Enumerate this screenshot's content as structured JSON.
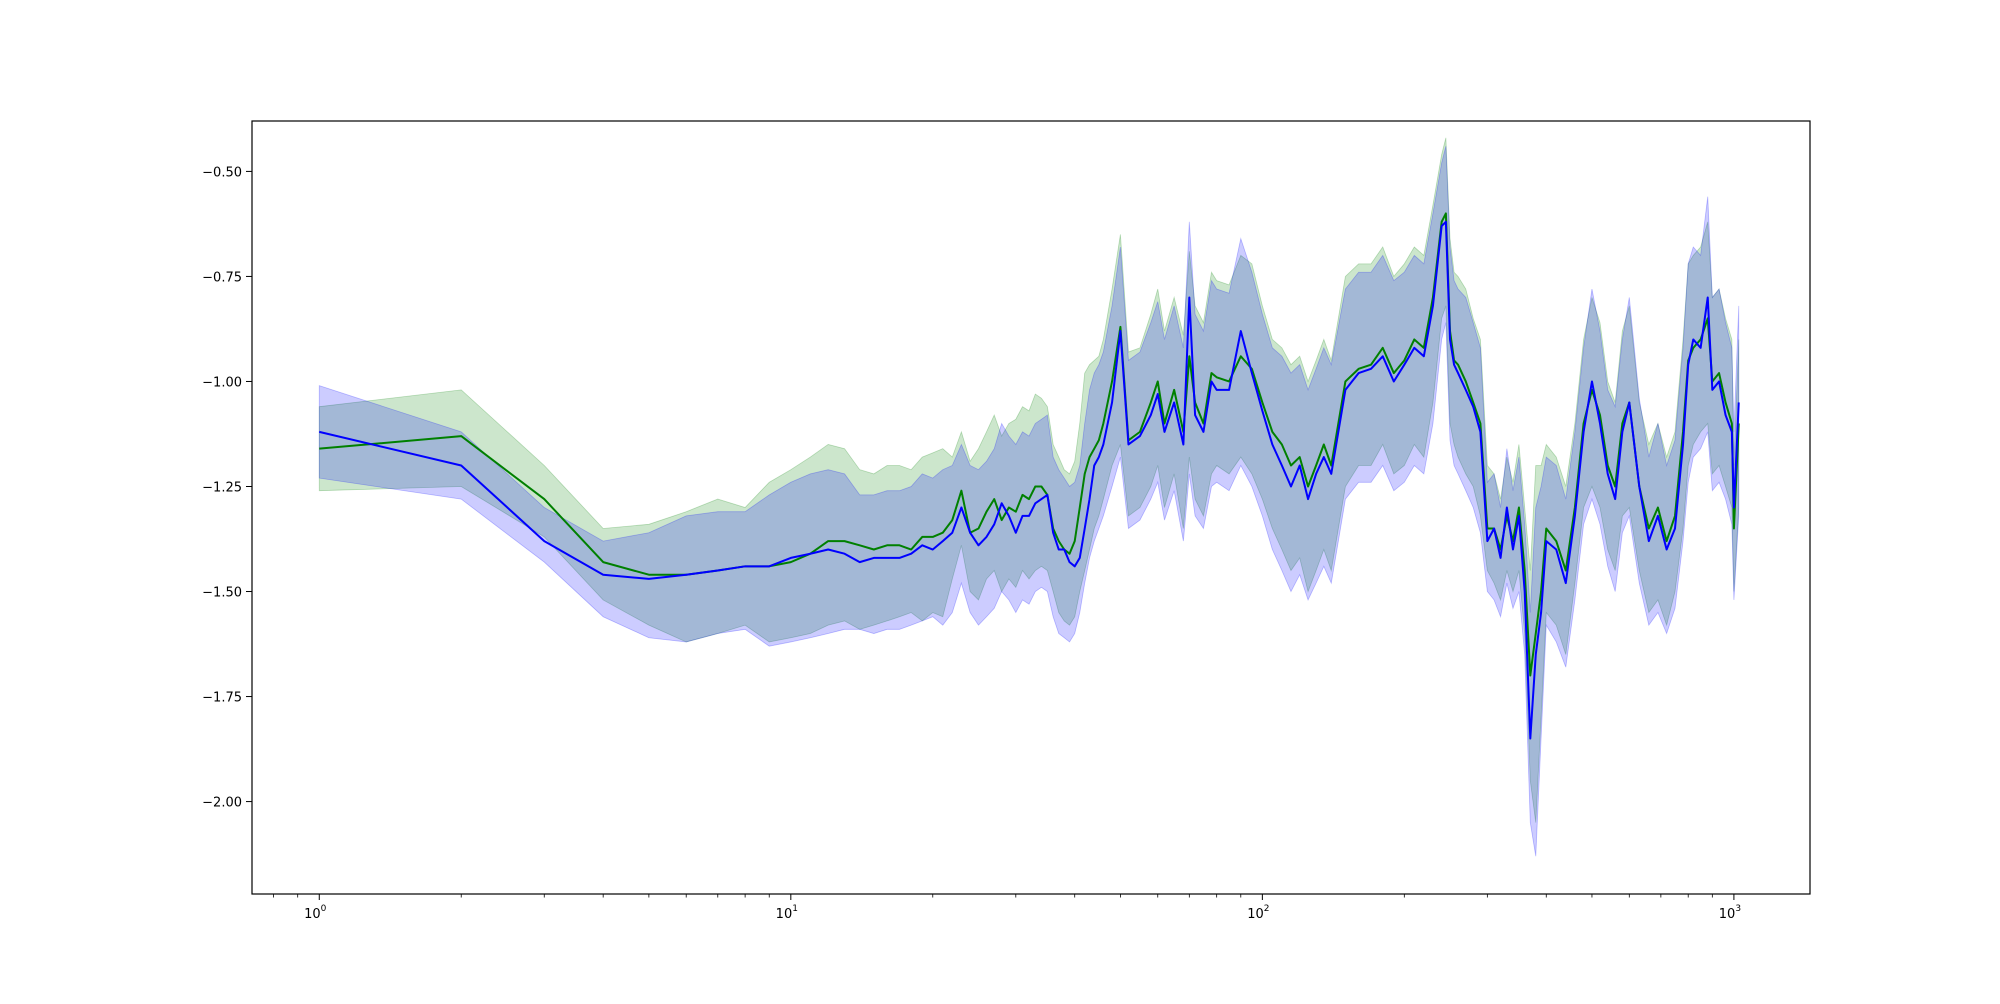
{
  "chart_data": {
    "type": "line",
    "title": "",
    "xlabel": "",
    "ylabel": "",
    "xscale": "log",
    "xlim": [
      0.72,
      1450
    ],
    "ylim": [
      -2.22,
      -0.38
    ],
    "grid": false,
    "legend": "none",
    "x_ticks": [
      {
        "value": 1,
        "base": "10",
        "exp": "0"
      },
      {
        "value": 10,
        "base": "10",
        "exp": "1"
      },
      {
        "value": 100,
        "base": "10",
        "exp": "2"
      },
      {
        "value": 1000,
        "base": "10",
        "exp": "3"
      }
    ],
    "y_ticks": [
      {
        "value": -0.5,
        "label": "−0.50"
      },
      {
        "value": -0.75,
        "label": "−0.75"
      },
      {
        "value": -1.0,
        "label": "−1.00"
      },
      {
        "value": -1.25,
        "label": "−1.25"
      },
      {
        "value": -1.5,
        "label": "−1.50"
      },
      {
        "value": -1.75,
        "label": "−1.75"
      },
      {
        "value": -2.0,
        "label": "−2.00"
      }
    ],
    "series": [
      {
        "color": "#008000",
        "fill_color": "#008000",
        "fill_opacity": 0.2,
        "x": [
          1,
          2,
          3,
          4,
          5,
          6,
          7,
          8,
          9,
          10,
          11,
          12,
          13,
          14,
          15,
          16,
          17,
          18,
          19,
          20,
          21,
          22,
          23,
          24,
          25,
          26,
          27,
          28,
          29,
          30,
          31,
          32,
          33,
          34,
          35,
          36,
          37,
          38,
          39,
          40,
          41,
          42,
          43,
          44,
          45,
          46,
          48,
          50,
          52,
          55,
          58,
          60,
          62,
          65,
          68,
          70,
          72,
          75,
          78,
          80,
          85,
          90,
          95,
          100,
          105,
          110,
          115,
          120,
          125,
          130,
          135,
          140,
          150,
          160,
          170,
          180,
          190,
          200,
          210,
          220,
          230,
          240,
          245,
          250,
          255,
          260,
          270,
          280,
          290,
          300,
          310,
          320,
          330,
          340,
          350,
          360,
          370,
          380,
          390,
          400,
          420,
          440,
          460,
          480,
          500,
          520,
          540,
          560,
          580,
          600,
          630,
          660,
          690,
          720,
          750,
          780,
          800,
          820,
          850,
          880,
          900,
          930,
          960,
          990,
          1000,
          1024
        ],
        "y": [
          -1.16,
          -1.13,
          -1.28,
          -1.43,
          -1.46,
          -1.46,
          -1.45,
          -1.44,
          -1.44,
          -1.43,
          -1.41,
          -1.38,
          -1.38,
          -1.39,
          -1.4,
          -1.39,
          -1.39,
          -1.4,
          -1.37,
          -1.37,
          -1.36,
          -1.33,
          -1.26,
          -1.36,
          -1.35,
          -1.31,
          -1.28,
          -1.33,
          -1.3,
          -1.31,
          -1.27,
          -1.28,
          -1.25,
          -1.25,
          -1.27,
          -1.35,
          -1.38,
          -1.4,
          -1.41,
          -1.38,
          -1.3,
          -1.22,
          -1.18,
          -1.16,
          -1.14,
          -1.1,
          -1.0,
          -0.87,
          -1.14,
          -1.12,
          -1.05,
          -1.0,
          -1.1,
          -1.02,
          -1.12,
          -0.94,
          -1.05,
          -1.1,
          -0.98,
          -0.99,
          -1.0,
          -0.94,
          -0.97,
          -1.05,
          -1.12,
          -1.15,
          -1.2,
          -1.18,
          -1.25,
          -1.2,
          -1.15,
          -1.2,
          -1.0,
          -0.97,
          -0.96,
          -0.92,
          -0.98,
          -0.95,
          -0.9,
          -0.92,
          -0.8,
          -0.62,
          -0.6,
          -0.88,
          -0.95,
          -0.96,
          -1.0,
          -1.05,
          -1.1,
          -1.35,
          -1.35,
          -1.4,
          -1.32,
          -1.38,
          -1.3,
          -1.45,
          -1.7,
          -1.6,
          -1.5,
          -1.35,
          -1.38,
          -1.45,
          -1.3,
          -1.1,
          -1.02,
          -1.08,
          -1.2,
          -1.25,
          -1.1,
          -1.05,
          -1.25,
          -1.35,
          -1.3,
          -1.38,
          -1.32,
          -1.12,
          -0.95,
          -0.92,
          -0.9,
          -0.85,
          -1.0,
          -0.98,
          -1.05,
          -1.1,
          -1.35,
          -1.1
        ],
        "lower": [
          -1.26,
          -1.25,
          -1.37,
          -1.52,
          -1.58,
          -1.62,
          -1.6,
          -1.58,
          -1.62,
          -1.61,
          -1.6,
          -1.58,
          -1.57,
          -1.59,
          -1.58,
          -1.57,
          -1.56,
          -1.55,
          -1.57,
          -1.55,
          -1.56,
          -1.47,
          -1.39,
          -1.5,
          -1.52,
          -1.47,
          -1.45,
          -1.5,
          -1.47,
          -1.49,
          -1.45,
          -1.47,
          -1.45,
          -1.44,
          -1.45,
          -1.5,
          -1.55,
          -1.57,
          -1.58,
          -1.56,
          -1.5,
          -1.45,
          -1.4,
          -1.35,
          -1.32,
          -1.28,
          -1.2,
          -1.15,
          -1.32,
          -1.3,
          -1.25,
          -1.2,
          -1.3,
          -1.22,
          -1.35,
          -1.18,
          -1.28,
          -1.32,
          -1.22,
          -1.2,
          -1.22,
          -1.18,
          -1.22,
          -1.28,
          -1.35,
          -1.4,
          -1.45,
          -1.42,
          -1.5,
          -1.45,
          -1.4,
          -1.45,
          -1.25,
          -1.2,
          -1.2,
          -1.15,
          -1.22,
          -1.2,
          -1.15,
          -1.18,
          -1.05,
          -0.85,
          -0.82,
          -1.1,
          -1.15,
          -1.18,
          -1.22,
          -1.25,
          -1.32,
          -1.45,
          -1.48,
          -1.52,
          -1.45,
          -1.5,
          -1.45,
          -1.6,
          -1.95,
          -2.05,
          -1.8,
          -1.55,
          -1.58,
          -1.65,
          -1.48,
          -1.3,
          -1.25,
          -1.3,
          -1.4,
          -1.45,
          -1.32,
          -1.3,
          -1.45,
          -1.55,
          -1.52,
          -1.58,
          -1.5,
          -1.35,
          -1.2,
          -1.15,
          -1.12,
          -1.1,
          -1.22,
          -1.2,
          -1.25,
          -1.3,
          -1.5,
          -1.3
        ],
        "upper": [
          -1.06,
          -1.02,
          -1.2,
          -1.35,
          -1.34,
          -1.31,
          -1.28,
          -1.3,
          -1.24,
          -1.21,
          -1.18,
          -1.15,
          -1.16,
          -1.21,
          -1.22,
          -1.2,
          -1.2,
          -1.21,
          -1.18,
          -1.17,
          -1.16,
          -1.18,
          -1.12,
          -1.19,
          -1.16,
          -1.12,
          -1.08,
          -1.13,
          -1.1,
          -1.09,
          -1.06,
          -1.07,
          -1.03,
          -1.04,
          -1.06,
          -1.15,
          -1.18,
          -1.21,
          -1.22,
          -1.19,
          -1.1,
          -0.98,
          -0.96,
          -0.95,
          -0.94,
          -0.9,
          -0.78,
          -0.65,
          -0.93,
          -0.92,
          -0.84,
          -0.78,
          -0.88,
          -0.8,
          -0.89,
          -0.69,
          -0.82,
          -0.86,
          -0.74,
          -0.76,
          -0.77,
          -0.7,
          -0.72,
          -0.82,
          -0.9,
          -0.92,
          -0.96,
          -0.94,
          -1.0,
          -0.95,
          -0.9,
          -0.95,
          -0.75,
          -0.72,
          -0.72,
          -0.68,
          -0.75,
          -0.72,
          -0.68,
          -0.7,
          -0.58,
          -0.46,
          -0.42,
          -0.66,
          -0.74,
          -0.75,
          -0.78,
          -0.85,
          -0.9,
          -1.2,
          -1.22,
          -1.28,
          -1.18,
          -1.24,
          -1.15,
          -1.3,
          -1.45,
          -1.2,
          -1.2,
          -1.15,
          -1.18,
          -1.25,
          -1.1,
          -0.9,
          -0.8,
          -0.86,
          -1.0,
          -1.05,
          -0.88,
          -0.82,
          -1.05,
          -1.15,
          -1.1,
          -1.18,
          -1.12,
          -0.9,
          -0.72,
          -0.7,
          -0.68,
          -0.62,
          -0.8,
          -0.78,
          -0.85,
          -0.9,
          -1.2,
          -0.9
        ]
      },
      {
        "color": "#0000ff",
        "fill_color": "#0000ff",
        "fill_opacity": 0.2,
        "x": [
          1,
          2,
          3,
          4,
          5,
          6,
          7,
          8,
          9,
          10,
          11,
          12,
          13,
          14,
          15,
          16,
          17,
          18,
          19,
          20,
          21,
          22,
          23,
          24,
          25,
          26,
          27,
          28,
          29,
          30,
          31,
          32,
          33,
          34,
          35,
          36,
          37,
          38,
          39,
          40,
          41,
          42,
          43,
          44,
          45,
          46,
          48,
          50,
          52,
          55,
          58,
          60,
          62,
          65,
          68,
          70,
          72,
          75,
          78,
          80,
          85,
          90,
          95,
          100,
          105,
          110,
          115,
          120,
          125,
          130,
          135,
          140,
          150,
          160,
          170,
          180,
          190,
          200,
          210,
          220,
          230,
          240,
          245,
          250,
          255,
          260,
          270,
          280,
          290,
          300,
          310,
          320,
          330,
          340,
          350,
          360,
          370,
          380,
          390,
          400,
          420,
          440,
          460,
          480,
          500,
          520,
          540,
          560,
          580,
          600,
          630,
          660,
          690,
          720,
          750,
          780,
          800,
          820,
          850,
          880,
          900,
          930,
          960,
          990,
          1000,
          1024
        ],
        "y": [
          -1.12,
          -1.2,
          -1.38,
          -1.46,
          -1.47,
          -1.46,
          -1.45,
          -1.44,
          -1.44,
          -1.42,
          -1.41,
          -1.4,
          -1.41,
          -1.43,
          -1.42,
          -1.42,
          -1.42,
          -1.41,
          -1.39,
          -1.4,
          -1.38,
          -1.36,
          -1.3,
          -1.36,
          -1.39,
          -1.37,
          -1.34,
          -1.29,
          -1.32,
          -1.36,
          -1.32,
          -1.32,
          -1.29,
          -1.28,
          -1.27,
          -1.36,
          -1.4,
          -1.4,
          -1.43,
          -1.44,
          -1.42,
          -1.35,
          -1.28,
          -1.2,
          -1.18,
          -1.15,
          -1.05,
          -0.88,
          -1.15,
          -1.13,
          -1.08,
          -1.03,
          -1.12,
          -1.05,
          -1.15,
          -0.8,
          -1.08,
          -1.12,
          -1.0,
          -1.02,
          -1.02,
          -0.88,
          -0.98,
          -1.07,
          -1.15,
          -1.2,
          -1.25,
          -1.2,
          -1.28,
          -1.22,
          -1.18,
          -1.22,
          -1.02,
          -0.98,
          -0.97,
          -0.94,
          -1.0,
          -0.96,
          -0.92,
          -0.94,
          -0.82,
          -0.63,
          -0.62,
          -0.9,
          -0.96,
          -0.98,
          -1.02,
          -1.06,
          -1.12,
          -1.38,
          -1.35,
          -1.42,
          -1.3,
          -1.4,
          -1.32,
          -1.5,
          -1.85,
          -1.65,
          -1.55,
          -1.38,
          -1.4,
          -1.48,
          -1.32,
          -1.12,
          -1.0,
          -1.1,
          -1.22,
          -1.28,
          -1.12,
          -1.05,
          -1.25,
          -1.38,
          -1.32,
          -1.4,
          -1.35,
          -1.15,
          -0.96,
          -0.9,
          -0.92,
          -0.8,
          -1.02,
          -1.0,
          -1.08,
          -1.12,
          -1.3,
          -1.05
        ],
        "lower": [
          -1.23,
          -1.28,
          -1.43,
          -1.56,
          -1.61,
          -1.62,
          -1.6,
          -1.59,
          -1.63,
          -1.62,
          -1.61,
          -1.6,
          -1.59,
          -1.59,
          -1.6,
          -1.59,
          -1.59,
          -1.58,
          -1.57,
          -1.56,
          -1.58,
          -1.55,
          -1.48,
          -1.55,
          -1.58,
          -1.56,
          -1.54,
          -1.5,
          -1.52,
          -1.55,
          -1.52,
          -1.53,
          -1.5,
          -1.49,
          -1.5,
          -1.56,
          -1.6,
          -1.61,
          -1.62,
          -1.6,
          -1.55,
          -1.48,
          -1.42,
          -1.38,
          -1.35,
          -1.32,
          -1.25,
          -1.18,
          -1.35,
          -1.33,
          -1.28,
          -1.24,
          -1.33,
          -1.26,
          -1.38,
          -1.22,
          -1.32,
          -1.35,
          -1.25,
          -1.24,
          -1.26,
          -1.2,
          -1.25,
          -1.32,
          -1.4,
          -1.45,
          -1.5,
          -1.46,
          -1.52,
          -1.48,
          -1.44,
          -1.48,
          -1.28,
          -1.24,
          -1.24,
          -1.2,
          -1.26,
          -1.24,
          -1.2,
          -1.22,
          -1.1,
          -0.9,
          -0.86,
          -1.14,
          -1.2,
          -1.22,
          -1.26,
          -1.3,
          -1.36,
          -1.5,
          -1.52,
          -1.56,
          -1.48,
          -1.54,
          -1.5,
          -1.65,
          -2.05,
          -2.13,
          -1.85,
          -1.58,
          -1.62,
          -1.68,
          -1.52,
          -1.34,
          -1.28,
          -1.34,
          -1.44,
          -1.5,
          -1.36,
          -1.32,
          -1.48,
          -1.58,
          -1.55,
          -1.6,
          -1.54,
          -1.38,
          -1.24,
          -1.18,
          -1.16,
          -1.12,
          -1.26,
          -1.24,
          -1.28,
          -1.34,
          -1.52,
          -1.32
        ],
        "upper": [
          -1.01,
          -1.12,
          -1.3,
          -1.38,
          -1.36,
          -1.32,
          -1.31,
          -1.31,
          -1.27,
          -1.24,
          -1.22,
          -1.21,
          -1.22,
          -1.27,
          -1.27,
          -1.26,
          -1.26,
          -1.25,
          -1.22,
          -1.23,
          -1.21,
          -1.2,
          -1.15,
          -1.2,
          -1.21,
          -1.19,
          -1.16,
          -1.1,
          -1.13,
          -1.15,
          -1.12,
          -1.13,
          -1.1,
          -1.09,
          -1.08,
          -1.18,
          -1.21,
          -1.23,
          -1.25,
          -1.24,
          -1.2,
          -1.1,
          -1.02,
          -0.98,
          -0.96,
          -0.93,
          -0.82,
          -0.68,
          -0.95,
          -0.93,
          -0.86,
          -0.81,
          -0.9,
          -0.82,
          -0.92,
          -0.62,
          -0.84,
          -0.88,
          -0.76,
          -0.78,
          -0.79,
          -0.66,
          -0.74,
          -0.84,
          -0.92,
          -0.94,
          -0.98,
          -0.96,
          -1.02,
          -0.97,
          -0.92,
          -0.96,
          -0.78,
          -0.74,
          -0.74,
          -0.7,
          -0.76,
          -0.74,
          -0.7,
          -0.72,
          -0.6,
          -0.48,
          -0.44,
          -0.68,
          -0.76,
          -0.78,
          -0.8,
          -0.86,
          -0.92,
          -1.24,
          -1.22,
          -1.3,
          -1.16,
          -1.26,
          -1.18,
          -1.34,
          -1.55,
          -1.3,
          -1.25,
          -1.18,
          -1.2,
          -1.28,
          -1.12,
          -0.92,
          -0.78,
          -0.88,
          -1.02,
          -1.06,
          -0.9,
          -0.8,
          -1.04,
          -1.18,
          -1.1,
          -1.2,
          -1.14,
          -0.92,
          -0.72,
          -0.68,
          -0.7,
          -0.56,
          -0.8,
          -0.78,
          -0.86,
          -0.92,
          -1.12,
          -0.82
        ]
      }
    ]
  }
}
